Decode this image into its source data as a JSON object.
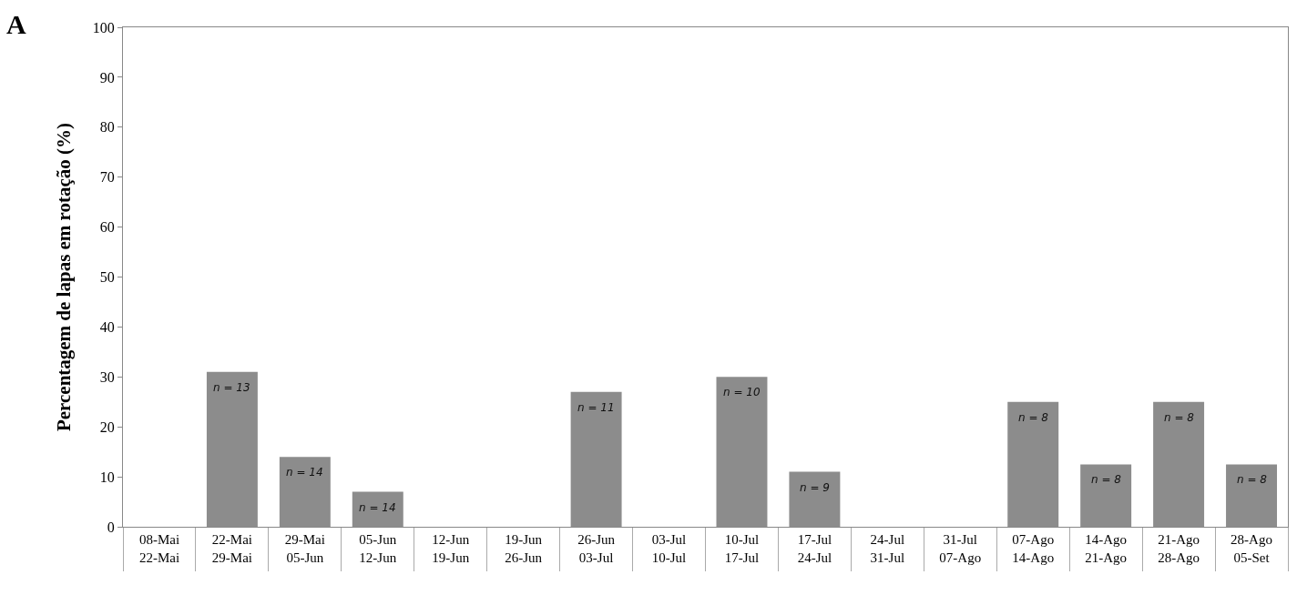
{
  "chart_data": {
    "type": "bar",
    "title": "A",
    "ylabel": "Percentagem de lapas em rotação (%)",
    "categories": [
      "08-Mai\n22-Mai",
      "22-Mai\n29-Mai",
      "29-Mai\n05-Jun",
      "05-Jun\n12-Jun",
      "12-Jun\n19-Jun",
      "19-Jun\n26-Jun",
      "26-Jun\n03-Jul",
      "03-Jul\n10-Jul",
      "10-Jul\n17-Jul",
      "17-Jul\n24-Jul",
      "24-Jul\n31-Jul",
      "31-Jul\n07-Ago",
      "07-Ago\n14-Ago",
      "14-Ago\n21-Ago",
      "21-Ago\n28-Ago",
      "28-Ago\n05-Set"
    ],
    "values": [
      0,
      31,
      14,
      7,
      0,
      0,
      27,
      0,
      30,
      11,
      0,
      0,
      25,
      12.5,
      25,
      12.5
    ],
    "color": "#8c8c8c",
    "ylim": [
      0,
      100
    ],
    "yticks": [
      0,
      10,
      20,
      30,
      40,
      50,
      60,
      70,
      80,
      90,
      100
    ],
    "grid": false,
    "annotations": [
      {
        "text": "n = 13",
        "x": "22-Mai\n29-Mai",
        "y": 31
      },
      {
        "text": "n = 14",
        "x": "29-Mai\n05-Jun",
        "y": 14
      },
      {
        "text": "n = 14",
        "x": "05-Jun\n12-Jun",
        "y": 7
      },
      {
        "text": "n = 11",
        "x": "26-Jun\n03-Jul",
        "y": 27
      },
      {
        "text": "n = 10",
        "x": "10-Jul\n17-Jul",
        "y": 30
      },
      {
        "text": "n = 9",
        "x": "17-Jul\n24-Jul",
        "y": 11
      },
      {
        "text": "n = 8",
        "x": "07-Ago\n14-Ago",
        "y": 25
      },
      {
        "text": "n = 8",
        "x": "14-Ago\n21-Ago",
        "y": 12.5
      },
      {
        "text": "n = 8",
        "x": "21-Ago\n28-Ago",
        "y": 25
      },
      {
        "text": "n = 8",
        "x": "28-Ago\n05-Set",
        "y": 12.5
      }
    ]
  }
}
